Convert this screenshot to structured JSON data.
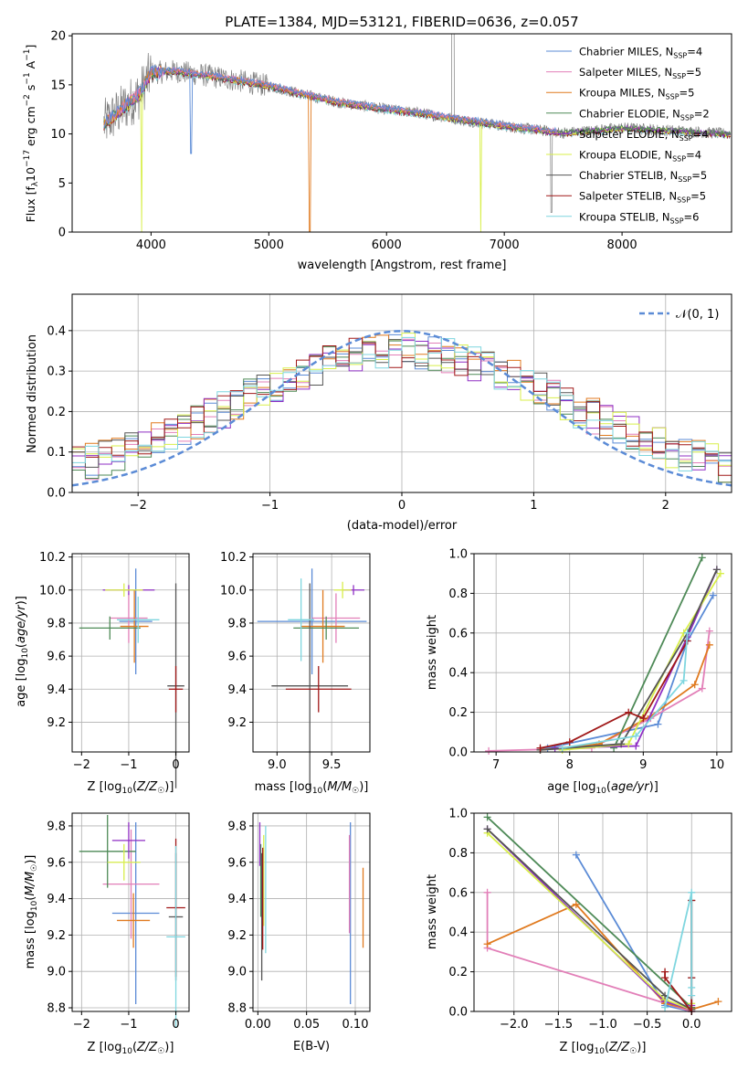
{
  "figure": {
    "title": "PLATE=1384, MJD=53121, FIBERID=0636, z=0.057"
  },
  "colors": {
    "Chabrier MILES": "#5b8bd6",
    "Salpeter MILES": "#e27fb8",
    "Kroupa MILES": "#e07a1f",
    "Chabrier ELODIE": "#4e8a57",
    "Salpeter ELODIE": "#8f2fc4",
    "Kroupa ELODIE": "#d8ef4a",
    "Chabrier STELIB": "#555555",
    "Salpeter STELIB": "#a01818",
    "Kroupa STELIB": "#7fd6df",
    "data": "#7f7f7f",
    "normal": "#5b8bd6"
  },
  "chart_data": [
    {
      "id": "spectrum",
      "type": "line",
      "xlabel": "wavelength [Angstrom, rest frame]",
      "ylabel": "Flux [f_λ 10^-17 erg cm^-2 s^-1 A^-1]",
      "xlim": [
        3330,
        8930
      ],
      "ylim": [
        0,
        20.2
      ],
      "xticks": [
        4000,
        5000,
        6000,
        7000,
        8000
      ],
      "yticks": [
        0,
        5,
        10,
        15,
        20
      ],
      "grid": false,
      "legend_position": "top-right",
      "legend": [
        {
          "label": "Chabrier MILES, N",
          "sub": "SSP",
          "suffix": "=4"
        },
        {
          "label": "Salpeter MILES, N",
          "sub": "SSP",
          "suffix": "=5"
        },
        {
          "label": "Kroupa MILES, N",
          "sub": "SSP",
          "suffix": "=5"
        },
        {
          "label": "Chabrier ELODIE, N",
          "sub": "SSP",
          "suffix": "=2"
        },
        {
          "label": "Salpeter ELODIE, N",
          "sub": "SSP",
          "suffix": "=4"
        },
        {
          "label": "Kroupa ELODIE, N",
          "sub": "SSP",
          "suffix": "=4"
        },
        {
          "label": "Chabrier STELIB, N",
          "sub": "SSP",
          "suffix": "=5"
        },
        {
          "label": "Salpeter STELIB, N",
          "sub": "SSP",
          "suffix": "=5"
        },
        {
          "label": "Kroupa STELIB, N",
          "sub": "SSP",
          "suffix": "=6"
        }
      ],
      "continuum": {
        "x": [
          3600,
          3750,
          3900,
          4000,
          4200,
          4500,
          4800,
          5000,
          5300,
          5600,
          6000,
          6300,
          6600,
          7000,
          7500,
          8000,
          8500,
          8900
        ],
        "y": [
          11.0,
          12.5,
          14.0,
          16.2,
          16.4,
          15.9,
          15.3,
          14.9,
          14.0,
          13.2,
          12.5,
          12.1,
          11.5,
          10.8,
          10.1,
          10.6,
          10.3,
          10.0
        ]
      }
    },
    {
      "id": "residuals",
      "type": "histogram",
      "xlabel": "(data-model)/error",
      "ylabel": "Normed distribution",
      "xlim": [
        -2.5,
        2.5
      ],
      "ylim": [
        0,
        0.49
      ],
      "xticks": [
        -2,
        -1,
        0,
        1,
        2
      ],
      "yticks": [
        0.0,
        0.1,
        0.2,
        0.3,
        0.4
      ],
      "grid": true,
      "legend_position": "top-right",
      "legend_label": "𝒩(0, 1)"
    },
    {
      "id": "age_vs_Z",
      "type": "errorbar",
      "xlabel": "Z [log10(Z/Z☉)]",
      "ylabel": "age  [log10(age/yr)]",
      "xlim": [
        -2.2,
        0.28
      ],
      "ylim": [
        9.02,
        10.22
      ],
      "xticks": [
        -2,
        -1,
        0
      ],
      "yticks": [
        9.2,
        9.4,
        9.6,
        9.8,
        10.0,
        10.2
      ],
      "grid": true,
      "points": [
        {
          "model": "Chabrier MILES",
          "x": -0.85,
          "xerr": 0.35,
          "y": 9.81,
          "yerr": 0.32
        },
        {
          "model": "Salpeter MILES",
          "x": -1.0,
          "xerr": 0.4,
          "y": 9.83,
          "yerr": 0.15
        },
        {
          "model": "Kroupa MILES",
          "x": -0.88,
          "xerr": 0.3,
          "y": 9.78,
          "yerr": 0.22
        },
        {
          "model": "Chabrier ELODIE",
          "x": -1.4,
          "xerr": 0.65,
          "y": 9.77,
          "yerr": 0.07
        },
        {
          "model": "Salpeter ELODIE",
          "x": -1.0,
          "xerr": 0.55,
          "y": 10.0,
          "yerr": 0.03
        },
        {
          "model": "Kroupa ELODIE",
          "x": -1.1,
          "xerr": 0.4,
          "y": 10.0,
          "yerr": 0.04
        },
        {
          "model": "Chabrier STELIB",
          "x": 0.0,
          "xerr": 0.18,
          "y": 9.42,
          "yerr": 0.62
        },
        {
          "model": "Salpeter STELIB",
          "x": 0.0,
          "xerr": 0.15,
          "y": 9.4,
          "yerr": 0.14
        },
        {
          "model": "Kroupa STELIB",
          "x": -0.8,
          "xerr": 0.45,
          "y": 9.82,
          "yerr": 0.14
        }
      ]
    },
    {
      "id": "age_vs_mass",
      "type": "errorbar",
      "xlabel": "mass [log10(M/M☉)]",
      "ylabel": "",
      "xlim": [
        8.78,
        9.85
      ],
      "ylim": [
        9.02,
        10.22
      ],
      "xticks": [
        9.0,
        9.5
      ],
      "yticks": [
        9.2,
        9.4,
        9.6,
        9.8,
        10.0,
        10.2
      ],
      "grid": true,
      "points": [
        {
          "model": "Chabrier MILES",
          "x": 9.32,
          "xerr": 0.5,
          "y": 9.81,
          "yerr": 0.32
        },
        {
          "model": "Salpeter MILES",
          "x": 9.54,
          "xerr": 0.22,
          "y": 9.83,
          "yerr": 0.15
        },
        {
          "model": "Kroupa MILES",
          "x": 9.42,
          "xerr": 0.2,
          "y": 9.78,
          "yerr": 0.22
        },
        {
          "model": "Chabrier ELODIE",
          "x": 9.45,
          "xerr": 0.3,
          "y": 9.77,
          "yerr": 0.07
        },
        {
          "model": "Salpeter ELODIE",
          "x": 9.7,
          "xerr": 0.1,
          "y": 10.0,
          "yerr": 0.03
        },
        {
          "model": "Kroupa ELODIE",
          "x": 9.6,
          "xerr": 0.08,
          "y": 10.0,
          "yerr": 0.05
        },
        {
          "model": "Chabrier STELIB",
          "x": 9.3,
          "xerr": 0.35,
          "y": 9.42,
          "yerr": 0.62
        },
        {
          "model": "Salpeter STELIB",
          "x": 9.38,
          "xerr": 0.3,
          "y": 9.4,
          "yerr": 0.14
        },
        {
          "model": "Kroupa STELIB",
          "x": 9.22,
          "xerr": 0.12,
          "y": 9.82,
          "yerr": 0.25
        }
      ]
    },
    {
      "id": "weight_vs_age",
      "type": "line",
      "xlabel": "age  [log10(age/yr)]",
      "ylabel": "mass weight",
      "xlim": [
        6.7,
        10.2
      ],
      "ylim": [
        0,
        1.0
      ],
      "xticks": [
        7,
        8,
        9,
        10
      ],
      "yticks": [
        0.0,
        0.2,
        0.4,
        0.6,
        0.8,
        1.0
      ],
      "grid": true,
      "series": [
        {
          "model": "Chabrier MILES",
          "x": [
            7.7,
            9.2,
            9.6,
            9.95
          ],
          "y": [
            0.02,
            0.14,
            0.56,
            0.79
          ]
        },
        {
          "model": "Salpeter MILES",
          "x": [
            6.9,
            8.3,
            9.1,
            9.8,
            9.9
          ],
          "y": [
            0.005,
            0.02,
            0.17,
            0.32,
            0.61
          ]
        },
        {
          "model": "Kroupa MILES",
          "x": [
            7.6,
            8.4,
            9.1,
            9.7,
            9.9
          ],
          "y": [
            0.01,
            0.04,
            0.18,
            0.34,
            0.54
          ]
        },
        {
          "model": "Chabrier ELODIE",
          "x": [
            8.6,
            9.8
          ],
          "y": [
            0.02,
            0.98
          ]
        },
        {
          "model": "Salpeter ELODIE",
          "x": [
            7.8,
            8.9,
            9.6,
            10.0
          ],
          "y": [
            0.02,
            0.03,
            0.58,
            0.92
          ]
        },
        {
          "model": "Kroupa ELODIE",
          "x": [
            7.9,
            8.8,
            9.55,
            10.05
          ],
          "y": [
            0.01,
            0.04,
            0.6,
            0.9
          ]
        },
        {
          "model": "Chabrier STELIB",
          "x": [
            7.6,
            8.7,
            9.6,
            10.0
          ],
          "y": [
            0.01,
            0.04,
            0.6,
            0.92
          ]
        },
        {
          "model": "Salpeter STELIB",
          "x": [
            7.6,
            8.0,
            8.8,
            9.0,
            9.6
          ],
          "y": [
            0.02,
            0.05,
            0.2,
            0.17,
            0.56
          ]
        },
        {
          "model": "Kroupa STELIB",
          "x": [
            7.9,
            8.9,
            9.55,
            9.6
          ],
          "y": [
            0.02,
            0.08,
            0.36,
            0.6
          ]
        }
      ]
    },
    {
      "id": "mass_vs_Z",
      "type": "errorbar",
      "xlabel": "Z [log10(Z/Z☉)]",
      "ylabel": "mass [log10(M/M☉)]",
      "xlim": [
        -2.2,
        0.28
      ],
      "ylim": [
        8.78,
        9.87
      ],
      "xticks": [
        -2,
        -1,
        0
      ],
      "yticks": [
        8.8,
        9.0,
        9.2,
        9.4,
        9.6,
        9.8
      ],
      "grid": true,
      "points": [
        {
          "model": "Chabrier MILES",
          "x": -0.85,
          "xerr": 0.5,
          "y": 9.32,
          "yerr": 0.5
        },
        {
          "model": "Salpeter MILES",
          "x": -0.95,
          "xerr": 0.6,
          "y": 9.48,
          "yerr": 0.3
        },
        {
          "model": "Kroupa MILES",
          "x": -0.9,
          "xerr": 0.35,
          "y": 9.28,
          "yerr": 0.15
        },
        {
          "model": "Chabrier ELODIE",
          "x": -1.45,
          "xerr": 0.6,
          "y": 9.66,
          "yerr": 0.2
        },
        {
          "model": "Salpeter ELODIE",
          "x": -1.0,
          "xerr": 0.35,
          "y": 9.72,
          "yerr": 0.1
        },
        {
          "model": "Kroupa ELODIE",
          "x": -1.1,
          "xerr": 0.35,
          "y": 9.6,
          "yerr": 0.1
        },
        {
          "model": "Chabrier STELIB",
          "x": 0.0,
          "xerr": 0.15,
          "y": 9.3,
          "yerr": 0.35
        },
        {
          "model": "Salpeter STELIB",
          "x": 0.0,
          "xerr": 0.2,
          "y": 9.35,
          "yerr": 0.38
        },
        {
          "model": "Kroupa STELIB",
          "x": 0.0,
          "xerr": 0.2,
          "y": 9.19,
          "yerr": 0.5
        }
      ]
    },
    {
      "id": "mass_vs_ebv",
      "type": "errorbar",
      "xlabel": "E(B-V)",
      "ylabel": "",
      "xlim": [
        -0.005,
        0.115
      ],
      "ylim": [
        8.78,
        9.87
      ],
      "xticks": [
        0.0,
        0.05,
        0.1
      ],
      "yticks": [
        8.8,
        9.0,
        9.2,
        9.4,
        9.6,
        9.8
      ],
      "grid": true,
      "points": [
        {
          "model": "Chabrier MILES",
          "x": 0.095,
          "xerr": 0,
          "y": 9.32,
          "yerr": 0.5
        },
        {
          "model": "Salpeter MILES",
          "x": 0.094,
          "xerr": 0,
          "y": 9.48,
          "yerr": 0.27
        },
        {
          "model": "Kroupa MILES",
          "x": 0.108,
          "xerr": 0,
          "y": 9.35,
          "yerr": 0.22
        },
        {
          "model": "Chabrier ELODIE",
          "x": 0.003,
          "xerr": 0,
          "y": 9.5,
          "yerr": 0.2
        },
        {
          "model": "Salpeter ELODIE",
          "x": 0.002,
          "xerr": 0,
          "y": 9.7,
          "yerr": 0.12
        },
        {
          "model": "Kroupa ELODIE",
          "x": 0.006,
          "xerr": 0,
          "y": 9.5,
          "yerr": 0.25
        },
        {
          "model": "Chabrier STELIB",
          "x": 0.004,
          "xerr": 0,
          "y": 9.3,
          "yerr": 0.35
        },
        {
          "model": "Salpeter STELIB",
          "x": 0.005,
          "xerr": 0,
          "y": 9.4,
          "yerr": 0.28
        },
        {
          "model": "Kroupa STELIB",
          "x": 0.008,
          "xerr": 0,
          "y": 9.45,
          "yerr": 0.35
        }
      ]
    },
    {
      "id": "weight_vs_Z",
      "type": "line",
      "xlabel": "Z [log10(Z/Z☉)]",
      "ylabel": "mass weight",
      "xlim": [
        -2.45,
        0.45
      ],
      "ylim": [
        0,
        1.0
      ],
      "xticks": [
        -2.0,
        -1.5,
        -1.0,
        -0.5,
        0.0
      ],
      "yticks": [
        0.0,
        0.2,
        0.4,
        0.6,
        0.8,
        1.0
      ],
      "grid": true,
      "series": [
        {
          "model": "Chabrier MILES",
          "x": [
            -1.3,
            -0.3,
            0.0
          ],
          "y": [
            0.79,
            0.03,
            0.0
          ]
        },
        {
          "model": "Salpeter MILES",
          "x": [
            -2.3,
            -2.3,
            0.0,
            0.0
          ],
          "y": [
            0.6,
            0.32,
            0.0,
            0.02
          ]
        },
        {
          "model": "Kroupa MILES",
          "x": [
            -2.3,
            -1.3,
            -0.3,
            0.0,
            0.3
          ],
          "y": [
            0.34,
            0.54,
            0.04,
            0.01,
            0.05
          ]
        },
        {
          "model": "Chabrier ELODIE",
          "x": [
            -2.3,
            0.0
          ],
          "y": [
            0.98,
            0.02
          ]
        },
        {
          "model": "Salpeter ELODIE",
          "x": [
            -2.3,
            -0.3,
            0.0,
            0.0
          ],
          "y": [
            0.92,
            0.05,
            0.01,
            0.03
          ]
        },
        {
          "model": "Kroupa ELODIE",
          "x": [
            -2.3,
            -0.3,
            0.0,
            0.0
          ],
          "y": [
            0.9,
            0.06,
            0.01,
            0.04
          ]
        },
        {
          "model": "Chabrier STELIB",
          "x": [
            -2.3,
            -0.3,
            0.0,
            0.0,
            0.0
          ],
          "y": [
            0.92,
            0.08,
            0.01,
            0.56,
            0.17
          ]
        },
        {
          "model": "Salpeter STELIB",
          "x": [
            -0.3,
            -0.3,
            0.0,
            0.0,
            0.0
          ],
          "y": [
            0.2,
            0.17,
            0.0,
            0.56,
            0.17
          ]
        },
        {
          "model": "Kroupa STELIB",
          "x": [
            -0.3,
            0.0,
            0.0,
            0.0
          ],
          "y": [
            0.02,
            0.6,
            0.08,
            0.12
          ]
        }
      ]
    }
  ]
}
